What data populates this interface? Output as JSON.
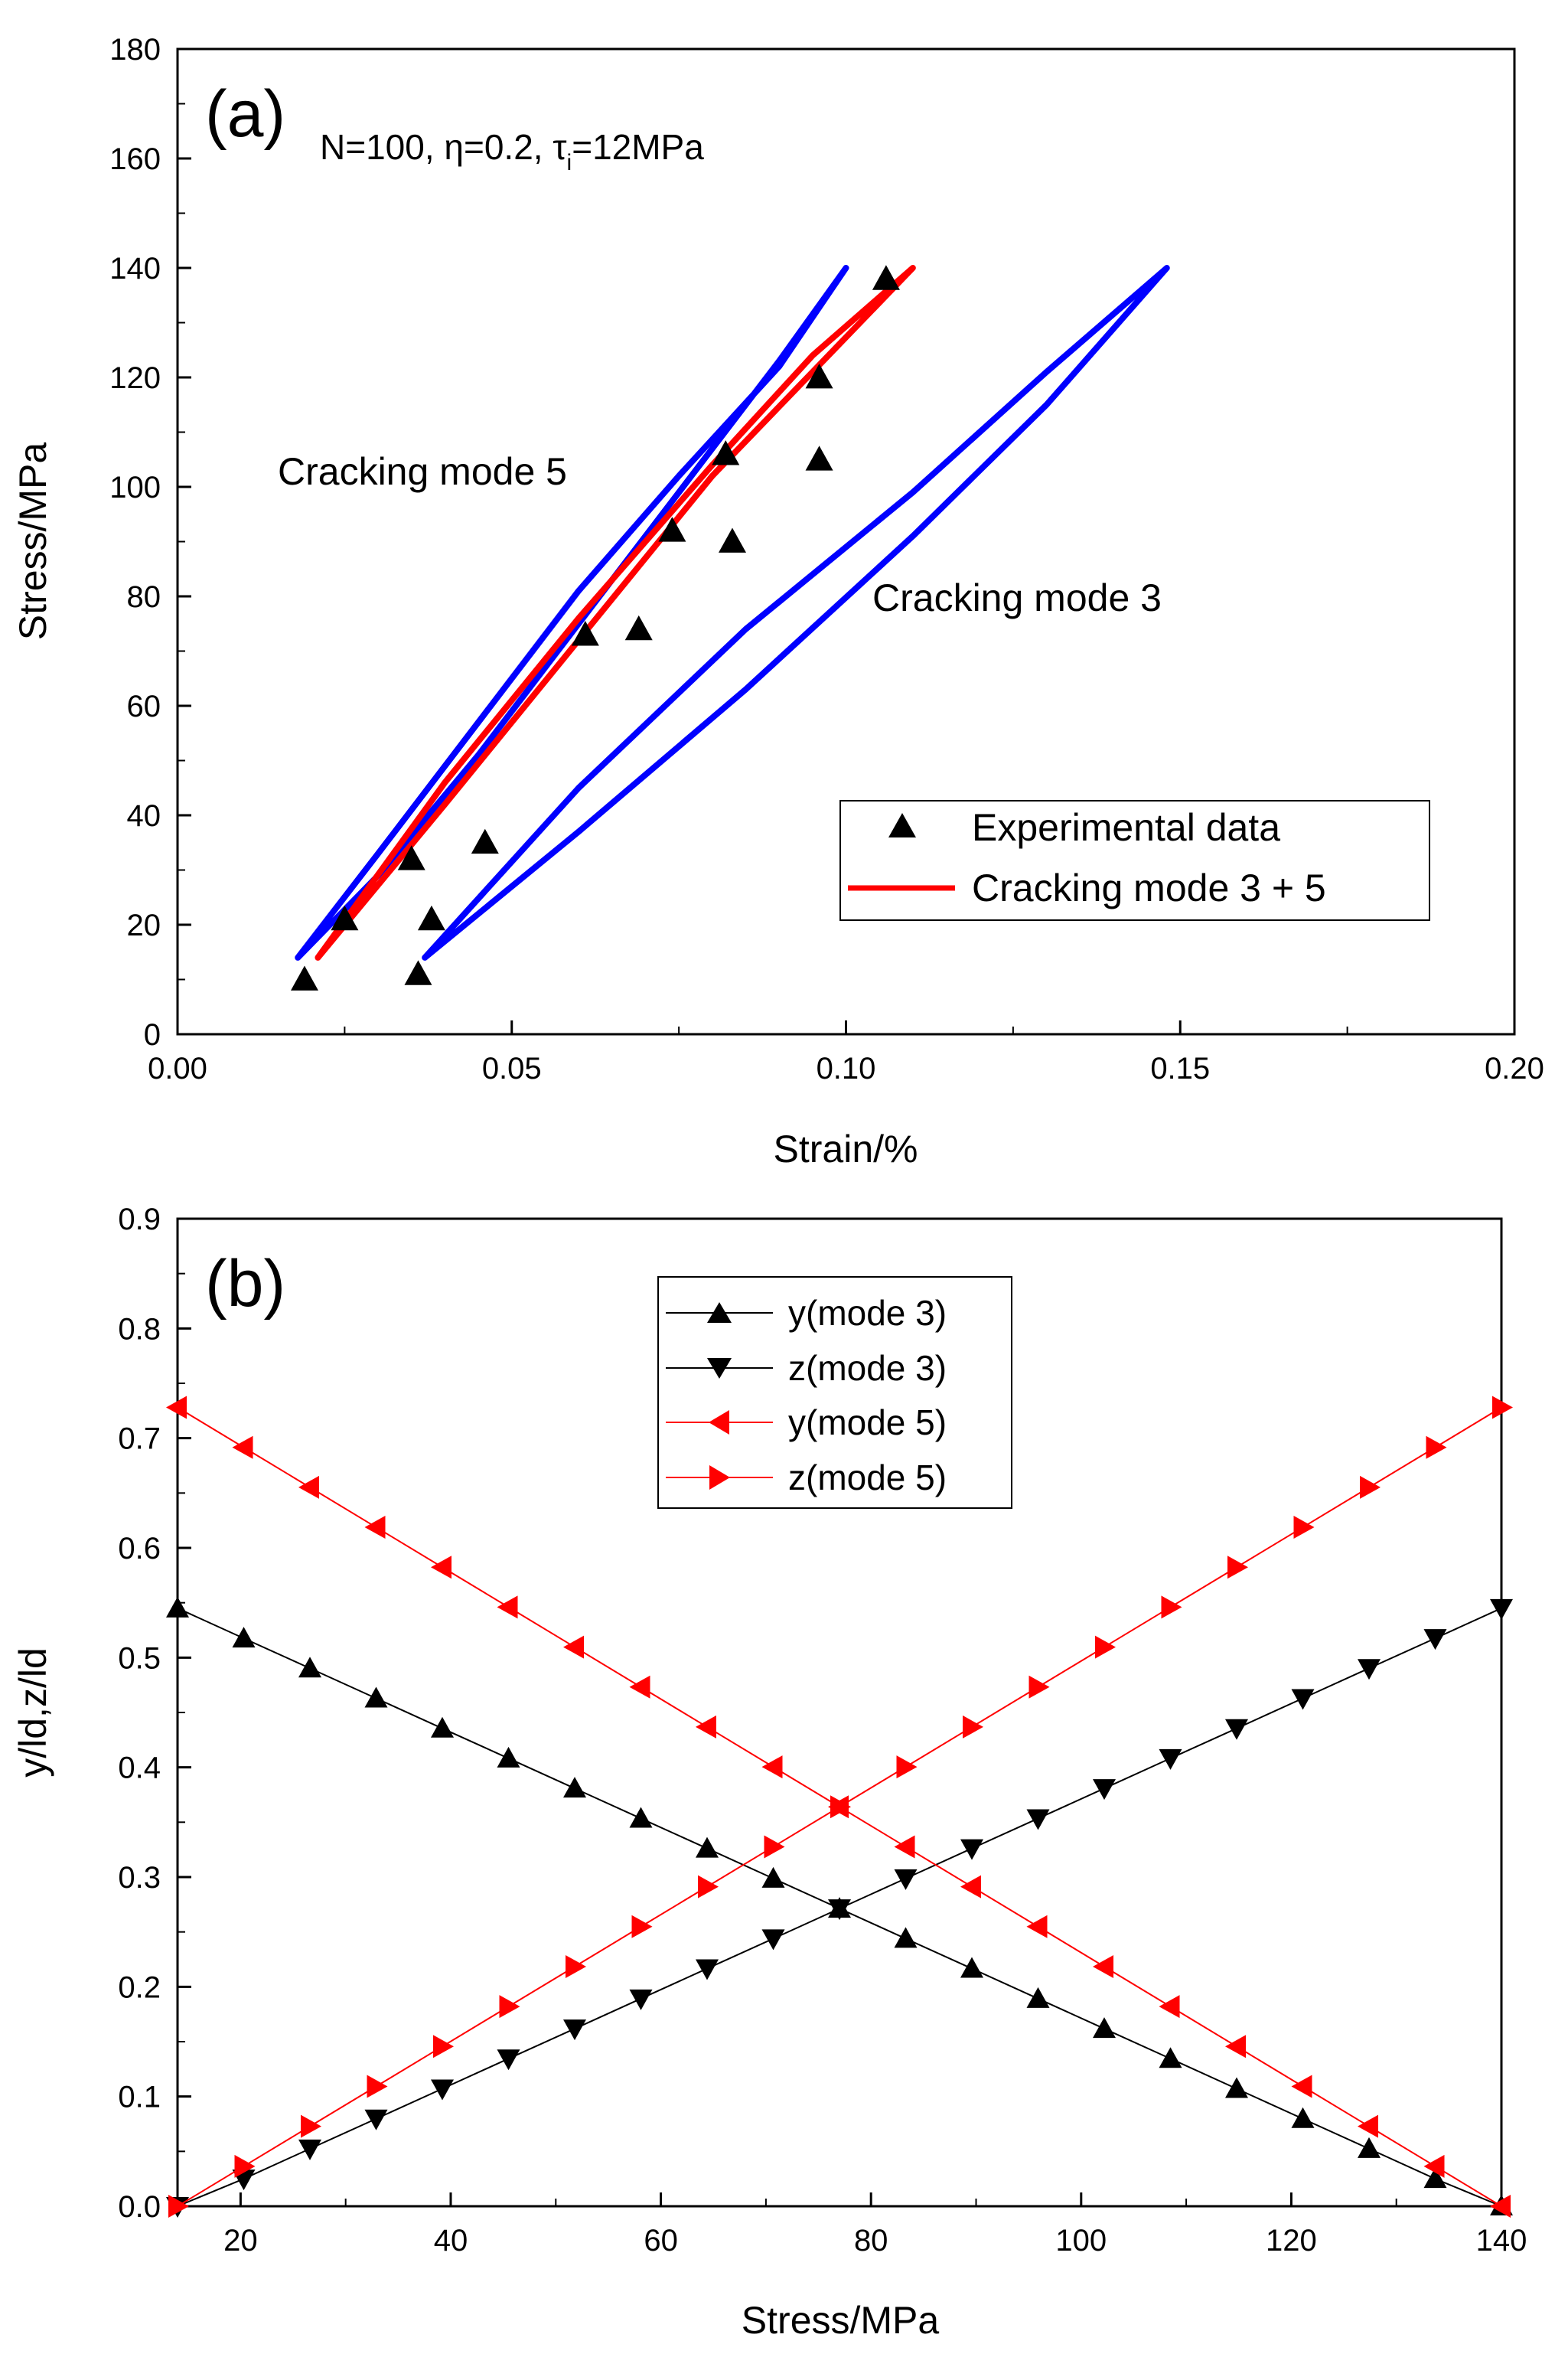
{
  "chart_data": [
    {
      "type": "line",
      "panel_label": "(a)",
      "xlabel": "Strain/%",
      "ylabel": "Stress/MPa",
      "xlim": [
        0.0,
        0.2
      ],
      "ylim": [
        0,
        180
      ],
      "xticks": [
        "0.00",
        "0.05",
        "0.10",
        "0.15",
        "0.20"
      ],
      "yticks": [
        "0",
        "20",
        "40",
        "60",
        "80",
        "100",
        "120",
        "140",
        "160",
        "180"
      ],
      "parameters": {
        "N": "N=100, ",
        "eta": "η=0.2, ",
        "tau_sym": "τ",
        "tau_sub": "i",
        "tau_val": "=12MPa"
      },
      "annotations": [
        {
          "text": "Cracking mode 5"
        },
        {
          "text": "Cracking mode 3"
        }
      ],
      "legend": [
        {
          "label": "Experimental data",
          "marker": "triangle-up",
          "color": "#000000"
        },
        {
          "label": "Cracking mode 3 + 5",
          "marker": "line",
          "color": "#ff0000"
        }
      ],
      "series": [
        {
          "name": "Cracking mode 5",
          "color": "#0000ff",
          "loading": {
            "x": [
              0.018,
              0.03,
              0.045,
              0.06,
              0.075,
              0.09,
              0.1
            ],
            "y": [
              14,
              33,
              57,
              81,
              102,
              122,
              140
            ]
          },
          "unloading": {
            "x": [
              0.1,
              0.09,
              0.075,
              0.06,
              0.045,
              0.03,
              0.018
            ],
            "y": [
              140,
              123,
              99,
              75,
              51,
              29,
              14
            ]
          }
        },
        {
          "name": "Cracking mode 3",
          "color": "#0000ff",
          "loading": {
            "x": [
              0.037,
              0.06,
              0.085,
              0.11,
              0.13,
              0.148
            ],
            "y": [
              14,
              37,
              63,
              91,
              115,
              140
            ]
          },
          "unloading": {
            "x": [
              0.148,
              0.13,
              0.11,
              0.085,
              0.06,
              0.037
            ],
            "y": [
              140,
              121,
              99,
              74,
              45,
              14
            ]
          }
        },
        {
          "name": "Cracking mode 3 + 5",
          "color": "#ff0000",
          "loading": {
            "x": [
              0.021,
              0.04,
              0.06,
              0.08,
              0.095,
              0.11
            ],
            "y": [
              14,
              42,
              72,
              102,
              121,
              140
            ]
          },
          "unloading": {
            "x": [
              0.11,
              0.095,
              0.08,
              0.06,
              0.04,
              0.021
            ],
            "y": [
              140,
              124,
              104,
              76,
              46,
              14
            ]
          }
        },
        {
          "name": "Experimental data",
          "color": "#000000",
          "marker": "triangle-up",
          "x": [
            0.019,
            0.025,
            0.035,
            0.036,
            0.038,
            0.046,
            0.061,
            0.069,
            0.074,
            0.082,
            0.083,
            0.096,
            0.096,
            0.106
          ],
          "y": [
            10,
            21,
            32,
            11,
            21,
            35,
            73,
            74,
            92,
            106,
            90,
            105,
            120,
            138
          ]
        }
      ]
    },
    {
      "type": "line",
      "panel_label": "(b)",
      "xlabel": "Stress/MPa",
      "ylabel": "y/ld,z/ld",
      "xlim": [
        14,
        140
      ],
      "ylim": [
        0.0,
        0.9
      ],
      "xticks": [
        "20",
        "40",
        "60",
        "80",
        "100",
        "120",
        "140"
      ],
      "yticks": [
        "0.0",
        "0.1",
        "0.2",
        "0.3",
        "0.4",
        "0.5",
        "0.6",
        "0.7",
        "0.8",
        "0.9"
      ],
      "x": [
        14.0,
        20.3,
        26.6,
        32.9,
        39.2,
        45.5,
        51.8,
        58.1,
        64.4,
        70.7,
        77.0,
        83.3,
        89.6,
        95.9,
        102.2,
        108.5,
        114.8,
        121.1,
        127.4,
        133.7,
        140.0
      ],
      "series": [
        {
          "name": "y(mode 3)",
          "color": "#000000",
          "marker": "triangle-up",
          "values": [
            0.545,
            0.5176,
            0.4903,
            0.4629,
            0.4355,
            0.4082,
            0.3808,
            0.3534,
            0.3261,
            0.2987,
            0.2713,
            0.2439,
            0.2166,
            0.1892,
            0.1618,
            0.1345,
            0.1071,
            0.0797,
            0.0524,
            0.025,
            0.0
          ]
        },
        {
          "name": "z(mode 3)",
          "color": "#000000",
          "marker": "triangle-down",
          "values": [
            0.0,
            0.025,
            0.0524,
            0.0797,
            0.1071,
            0.1345,
            0.1618,
            0.1892,
            0.2166,
            0.2439,
            0.2713,
            0.2987,
            0.3261,
            0.3534,
            0.3808,
            0.4082,
            0.4355,
            0.4629,
            0.4903,
            0.5176,
            0.545
          ]
        },
        {
          "name": "y(mode 5)",
          "color": "#ff0000",
          "marker": "triangle-left",
          "values": [
            0.728,
            0.6916,
            0.6552,
            0.6188,
            0.5824,
            0.546,
            0.5096,
            0.4732,
            0.4368,
            0.4004,
            0.364,
            0.3276,
            0.2912,
            0.2548,
            0.2184,
            0.182,
            0.1456,
            0.1092,
            0.0728,
            0.0364,
            0.0
          ]
        },
        {
          "name": "z(mode 5)",
          "color": "#ff0000",
          "marker": "triangle-right",
          "values": [
            0.0,
            0.0364,
            0.0728,
            0.1092,
            0.1456,
            0.182,
            0.2184,
            0.2548,
            0.2912,
            0.3276,
            0.364,
            0.4004,
            0.4368,
            0.4732,
            0.5096,
            0.546,
            0.5824,
            0.6188,
            0.6552,
            0.6916,
            0.728
          ]
        }
      ],
      "legend": [
        {
          "label": "y(mode 3)",
          "marker": "triangle-up",
          "color": "#000000"
        },
        {
          "label": "z(mode 3)",
          "marker": "triangle-down",
          "color": "#000000"
        },
        {
          "label": "y(mode 5)",
          "marker": "triangle-left",
          "color": "#ff0000"
        },
        {
          "label": "z(mode 5)",
          "marker": "triangle-right",
          "color": "#ff0000"
        }
      ]
    }
  ]
}
